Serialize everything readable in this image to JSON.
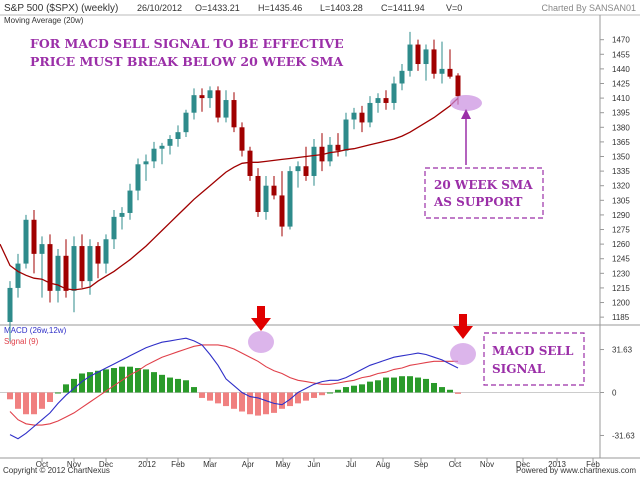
{
  "header": {
    "symbol": "S&P 500 ($SPX) (weekly)",
    "date": "26/10/2012",
    "open": "O=1433.21",
    "high": "H=1435.46",
    "low": "L=1403.28",
    "close": "C=1411.94",
    "volume": "V=0",
    "charted_by": "Charted By SANSAN01"
  },
  "footer": {
    "copyright": "Copyright © 2012 ChartNexus",
    "powered_by": "Powered by www.chartnexus.com"
  },
  "annotations": {
    "headline_line1": "FOR MACD SELL SIGNAL TO BE EFFECTIVE",
    "headline_line2": "PRICE MUST BREAK BELOW 20 WEEK SMA",
    "support_line1": "20 WEEK SMA",
    "support_line2": "AS SUPPORT",
    "macd_line1": "MACD SELL",
    "macd_line2": "SIGNAL"
  },
  "colors": {
    "up_candle": "#2e8b8b",
    "down_candle": "#a00000",
    "sma": "#a00000",
    "macd_line": "#2f2fc8",
    "signal_line": "#e0404a",
    "hist_up": "#2a9a2a",
    "hist_down": "#f08080",
    "annotation_text": "#9b2fa8",
    "highlight_ellipse": "#c98de0",
    "arrow_red": "#e00000"
  },
  "chart_data": [
    {
      "type": "candlestick",
      "legend": "Moving Average (20w)",
      "y_ticks": [
        1185,
        1200,
        1215,
        1230,
        1245,
        1260,
        1275,
        1290,
        1305,
        1320,
        1335,
        1350,
        1365,
        1380,
        1395,
        1410,
        1425,
        1440,
        1455,
        1470
      ],
      "ylim": [
        1180,
        1482
      ],
      "x_ticks": [
        "Oct",
        "Nov",
        "Dec",
        "2012",
        "Feb",
        "Mar",
        "Apr",
        "May",
        "Jun",
        "Jul",
        "Aug",
        "Sep",
        "Oct",
        "Nov",
        "Dec",
        "2013",
        "Feb"
      ],
      "candles": [
        {
          "o": 1180,
          "h": 1222,
          "l": 1160,
          "c": 1215
        },
        {
          "o": 1215,
          "h": 1250,
          "l": 1205,
          "c": 1240
        },
        {
          "o": 1240,
          "h": 1290,
          "l": 1235,
          "c": 1285
        },
        {
          "o": 1285,
          "h": 1295,
          "l": 1230,
          "c": 1250
        },
        {
          "o": 1250,
          "h": 1268,
          "l": 1205,
          "c": 1260
        },
        {
          "o": 1260,
          "h": 1270,
          "l": 1200,
          "c": 1212
        },
        {
          "o": 1212,
          "h": 1255,
          "l": 1200,
          "c": 1248
        },
        {
          "o": 1248,
          "h": 1265,
          "l": 1205,
          "c": 1212
        },
        {
          "o": 1212,
          "h": 1268,
          "l": 1190,
          "c": 1258
        },
        {
          "o": 1258,
          "h": 1270,
          "l": 1215,
          "c": 1222
        },
        {
          "o": 1222,
          "h": 1265,
          "l": 1208,
          "c": 1258
        },
        {
          "o": 1258,
          "h": 1262,
          "l": 1225,
          "c": 1240
        },
        {
          "o": 1240,
          "h": 1270,
          "l": 1230,
          "c": 1265
        },
        {
          "o": 1265,
          "h": 1295,
          "l": 1255,
          "c": 1288
        },
        {
          "o": 1288,
          "h": 1298,
          "l": 1275,
          "c": 1292
        },
        {
          "o": 1292,
          "h": 1322,
          "l": 1285,
          "c": 1315
        },
        {
          "o": 1315,
          "h": 1348,
          "l": 1305,
          "c": 1342
        },
        {
          "o": 1342,
          "h": 1352,
          "l": 1325,
          "c": 1345
        },
        {
          "o": 1345,
          "h": 1365,
          "l": 1338,
          "c": 1358
        },
        {
          "o": 1358,
          "h": 1364,
          "l": 1342,
          "c": 1361
        },
        {
          "o": 1361,
          "h": 1372,
          "l": 1352,
          "c": 1368
        },
        {
          "o": 1368,
          "h": 1382,
          "l": 1360,
          "c": 1375
        },
        {
          "o": 1375,
          "h": 1398,
          "l": 1370,
          "c": 1395
        },
        {
          "o": 1395,
          "h": 1420,
          "l": 1388,
          "c": 1413
        },
        {
          "o": 1413,
          "h": 1420,
          "l": 1396,
          "c": 1410
        },
        {
          "o": 1410,
          "h": 1422,
          "l": 1400,
          "c": 1418
        },
        {
          "o": 1418,
          "h": 1422,
          "l": 1385,
          "c": 1390
        },
        {
          "o": 1390,
          "h": 1418,
          "l": 1385,
          "c": 1408
        },
        {
          "o": 1408,
          "h": 1416,
          "l": 1375,
          "c": 1380
        },
        {
          "o": 1380,
          "h": 1385,
          "l": 1350,
          "c": 1356
        },
        {
          "o": 1356,
          "h": 1360,
          "l": 1325,
          "c": 1330
        },
        {
          "o": 1330,
          "h": 1338,
          "l": 1288,
          "c": 1293
        },
        {
          "o": 1293,
          "h": 1330,
          "l": 1285,
          "c": 1320
        },
        {
          "o": 1320,
          "h": 1330,
          "l": 1306,
          "c": 1310
        },
        {
          "o": 1310,
          "h": 1335,
          "l": 1268,
          "c": 1278
        },
        {
          "o": 1278,
          "h": 1340,
          "l": 1275,
          "c": 1335
        },
        {
          "o": 1335,
          "h": 1345,
          "l": 1318,
          "c": 1340
        },
        {
          "o": 1340,
          "h": 1360,
          "l": 1325,
          "c": 1330
        },
        {
          "o": 1330,
          "h": 1368,
          "l": 1320,
          "c": 1360
        },
        {
          "o": 1360,
          "h": 1374,
          "l": 1335,
          "c": 1345
        },
        {
          "o": 1345,
          "h": 1370,
          "l": 1340,
          "c": 1362
        },
        {
          "o": 1362,
          "h": 1374,
          "l": 1350,
          "c": 1356
        },
        {
          "o": 1356,
          "h": 1395,
          "l": 1350,
          "c": 1388
        },
        {
          "o": 1388,
          "h": 1400,
          "l": 1378,
          "c": 1395
        },
        {
          "o": 1395,
          "h": 1402,
          "l": 1375,
          "c": 1385
        },
        {
          "o": 1385,
          "h": 1412,
          "l": 1380,
          "c": 1405
        },
        {
          "o": 1405,
          "h": 1415,
          "l": 1395,
          "c": 1410
        },
        {
          "o": 1410,
          "h": 1418,
          "l": 1398,
          "c": 1405
        },
        {
          "o": 1405,
          "h": 1432,
          "l": 1398,
          "c": 1425
        },
        {
          "o": 1425,
          "h": 1445,
          "l": 1418,
          "c": 1438
        },
        {
          "o": 1438,
          "h": 1478,
          "l": 1432,
          "c": 1465
        },
        {
          "o": 1465,
          "h": 1470,
          "l": 1438,
          "c": 1445
        },
        {
          "o": 1445,
          "h": 1465,
          "l": 1428,
          "c": 1460
        },
        {
          "o": 1460,
          "h": 1470,
          "l": 1430,
          "c": 1435
        },
        {
          "o": 1435,
          "h": 1468,
          "l": 1425,
          "c": 1440
        },
        {
          "o": 1440,
          "h": 1460,
          "l": 1430,
          "c": 1432
        },
        {
          "o": 1433.21,
          "h": 1435.46,
          "l": 1403.28,
          "c": 1411.94
        }
      ],
      "sma20": [
        1238,
        1232,
        1228,
        1225,
        1224,
        1220,
        1218,
        1214,
        1213,
        1214,
        1216,
        1222,
        1227,
        1232,
        1238,
        1244,
        1251,
        1258,
        1266,
        1274,
        1282,
        1290,
        1298,
        1306,
        1313,
        1320,
        1327,
        1334,
        1339,
        1343,
        1344,
        1344,
        1345,
        1346,
        1347,
        1348,
        1349,
        1350,
        1351,
        1352,
        1354,
        1355,
        1357,
        1358,
        1360,
        1362,
        1364,
        1366,
        1368,
        1371,
        1375,
        1380,
        1385,
        1390,
        1396,
        1402,
        1410
      ]
    },
    {
      "type": "macd",
      "legend_macd": "MACD (26w,12w)",
      "legend_signal": "Signal (9)",
      "y_ticks": [
        31.63,
        0,
        -31.63
      ],
      "ylim": [
        -46,
        46
      ],
      "macd": [
        -31,
        -34,
        -30,
        -25,
        -20,
        -15,
        -8,
        -2,
        3,
        8,
        12,
        15,
        18,
        21,
        24,
        27,
        30,
        33,
        35,
        37,
        38,
        39,
        40,
        38,
        35,
        28,
        20,
        10,
        5,
        0,
        -3,
        -4,
        -6,
        -8,
        -9,
        -5,
        0,
        3,
        6,
        8,
        9,
        9,
        11,
        14,
        17,
        20,
        22,
        24,
        26,
        27,
        28,
        29,
        28,
        26,
        24,
        21,
        18
      ],
      "signal": [
        -14,
        -20,
        -23,
        -24,
        -24,
        -23,
        -21,
        -18,
        -15,
        -11,
        -7,
        -3,
        1,
        5,
        9,
        13,
        16,
        20,
        23,
        26,
        28,
        30,
        32,
        34,
        35,
        35,
        35,
        34,
        32,
        29,
        26,
        23,
        19,
        16,
        14,
        11,
        9,
        8,
        7,
        6,
        6,
        7,
        8,
        9,
        11,
        12,
        14,
        15,
        17,
        18,
        20,
        21,
        22,
        23,
        23,
        23,
        23
      ],
      "histogram": [
        -5,
        -12,
        -16,
        -16,
        -12,
        -7,
        0,
        6,
        10,
        14,
        15,
        16,
        17,
        18,
        19,
        19,
        18,
        17,
        15,
        13,
        11,
        10,
        9,
        4,
        -4,
        -6,
        -8,
        -10,
        -12,
        -14,
        -16,
        -17,
        -16,
        -15,
        -12,
        -10,
        -8,
        -6,
        -4,
        -2,
        0,
        2,
        4,
        5,
        6,
        8,
        9,
        11,
        11,
        12,
        12,
        11,
        10,
        7,
        4,
        2,
        -1
      ]
    }
  ]
}
